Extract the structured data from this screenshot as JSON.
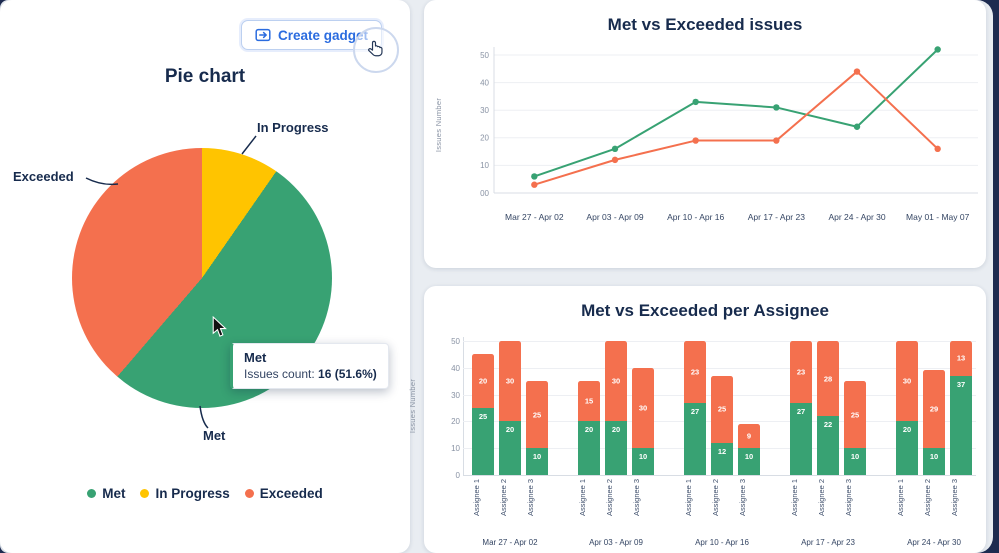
{
  "toolbar": {
    "create_gadget_label": "Create gadget"
  },
  "pie_card": {
    "title": "Pie chart",
    "callouts": {
      "met": "Met",
      "in_progress": "In Progress",
      "exceeded": "Exceeded"
    },
    "tooltip": {
      "series": "Met",
      "label": "Issues count: ",
      "value": "16 (51.6%)"
    },
    "legend": [
      {
        "label": "Met",
        "color": "#38a273"
      },
      {
        "label": "In Progress",
        "color": "#ffc400"
      },
      {
        "label": "Exceeded",
        "color": "#f4704e"
      }
    ]
  },
  "chart_data": [
    {
      "id": "status-pie",
      "type": "pie",
      "title": "Pie chart",
      "start_angle_deg": 0,
      "legend_position": "bottom",
      "slices": [
        {
          "label": "In Progress",
          "value": 3,
          "pct": "9.7%",
          "color": "#ffc400"
        },
        {
          "label": "Met",
          "value": 16,
          "pct": "51.6%",
          "color": "#38a273"
        },
        {
          "label": "Exceeded",
          "value": 12,
          "pct": "38.7%",
          "color": "#f4704e"
        }
      ]
    },
    {
      "id": "met-vs-exceeded-issues",
      "type": "line",
      "title": "Met vs Exceeded issues",
      "ylabel": "Issues Number",
      "ylim": [
        0,
        55
      ],
      "yticks": [
        "00",
        "10",
        "20",
        "30",
        "40",
        "50"
      ],
      "grid": true,
      "legend_position": "none",
      "categories": [
        "Mar 27 - Apr 02",
        "Apr 03 - Apr 09",
        "Apr 10 - Apr 16",
        "Apr 17 - Apr 23",
        "Apr 24 - Apr 30",
        "May 01 - May 07"
      ],
      "series": [
        {
          "name": "Met",
          "color": "#38a273",
          "values": [
            6,
            16,
            33,
            31,
            24,
            52
          ]
        },
        {
          "name": "Exceeded",
          "color": "#f4704e",
          "values": [
            3,
            12,
            19,
            19,
            44,
            16
          ]
        }
      ]
    },
    {
      "id": "met-vs-exceeded-per-assignee",
      "type": "bar",
      "stacked": true,
      "title": "Met vs Exceeded per Assignee",
      "ylabel": "Issues Number",
      "ylim": [
        0,
        50
      ],
      "yticks": [
        "0",
        "10",
        "20",
        "30",
        "40",
        "50"
      ],
      "grid": true,
      "series_names": [
        "Met",
        "Exceeded"
      ],
      "series_colors": [
        "#38a273",
        "#f4704e"
      ],
      "groups": [
        {
          "label": "Mar 27 - Apr 02",
          "bars": [
            {
              "label": "Assignee 1",
              "met": 25,
              "exceeded": 20
            },
            {
              "label": "Assignee 2",
              "met": 20,
              "exceeded": 30
            },
            {
              "label": "Assignee 3",
              "met": 10,
              "exceeded": 25
            }
          ]
        },
        {
          "label": "Apr 03 - Apr 09",
          "bars": [
            {
              "label": "Assignee 1",
              "met": 20,
              "exceeded": 15
            },
            {
              "label": "Assignee 2",
              "met": 20,
              "exceeded": 30
            },
            {
              "label": "Assignee 3",
              "met": 10,
              "exceeded": 30
            }
          ]
        },
        {
          "label": "Apr 10 - Apr 16",
          "bars": [
            {
              "label": "Assignee 1",
              "met": 27,
              "exceeded": 23
            },
            {
              "label": "Assignee 2",
              "met": 12,
              "exceeded": 25
            },
            {
              "label": "Assignee 3",
              "met": 10,
              "exceeded": 9
            }
          ]
        },
        {
          "label": "Apr 17 - Apr 23",
          "bars": [
            {
              "label": "Assignee 1",
              "met": 27,
              "exceeded": 23
            },
            {
              "label": "Assignee 2",
              "met": 22,
              "exceeded": 28
            },
            {
              "label": "Assignee 3",
              "met": 10,
              "exceeded": 25
            }
          ]
        },
        {
          "label": "Apr 24 - Apr 30",
          "bars": [
            {
              "label": "Assignee 1",
              "met": 20,
              "exceeded": 30
            },
            {
              "label": "Assignee 2",
              "met": 10,
              "exceeded": 29
            },
            {
              "label": "Assignee 3",
              "met": 37,
              "exceeded": 13
            }
          ]
        }
      ]
    }
  ]
}
